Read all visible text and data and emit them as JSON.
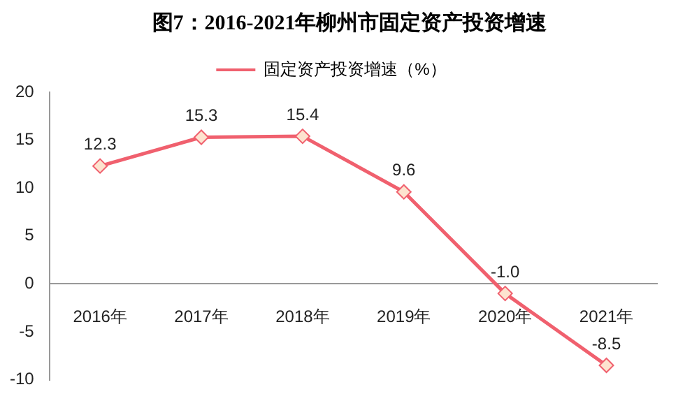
{
  "chart_data": {
    "type": "line",
    "title": "图7：2016-2021年柳州市固定资产投资增速",
    "categories": [
      "2016年",
      "2017年",
      "2018年",
      "2019年",
      "2020年",
      "2021年"
    ],
    "series": [
      {
        "name": "固定资产投资增速（%）",
        "color": "#f0606e",
        "values": [
          12.3,
          15.3,
          15.4,
          9.6,
          -1.0,
          -8.5
        ]
      }
    ],
    "value_labels": [
      "12.3",
      "15.3",
      "15.4",
      "9.6",
      "-1.0",
      "-8.5"
    ],
    "ylim": [
      -10,
      20
    ],
    "yticks": [
      -10,
      -5,
      0,
      5,
      10,
      15,
      20
    ],
    "grid": false,
    "legend": "top",
    "marker": "diamond",
    "line_style": "solid"
  }
}
